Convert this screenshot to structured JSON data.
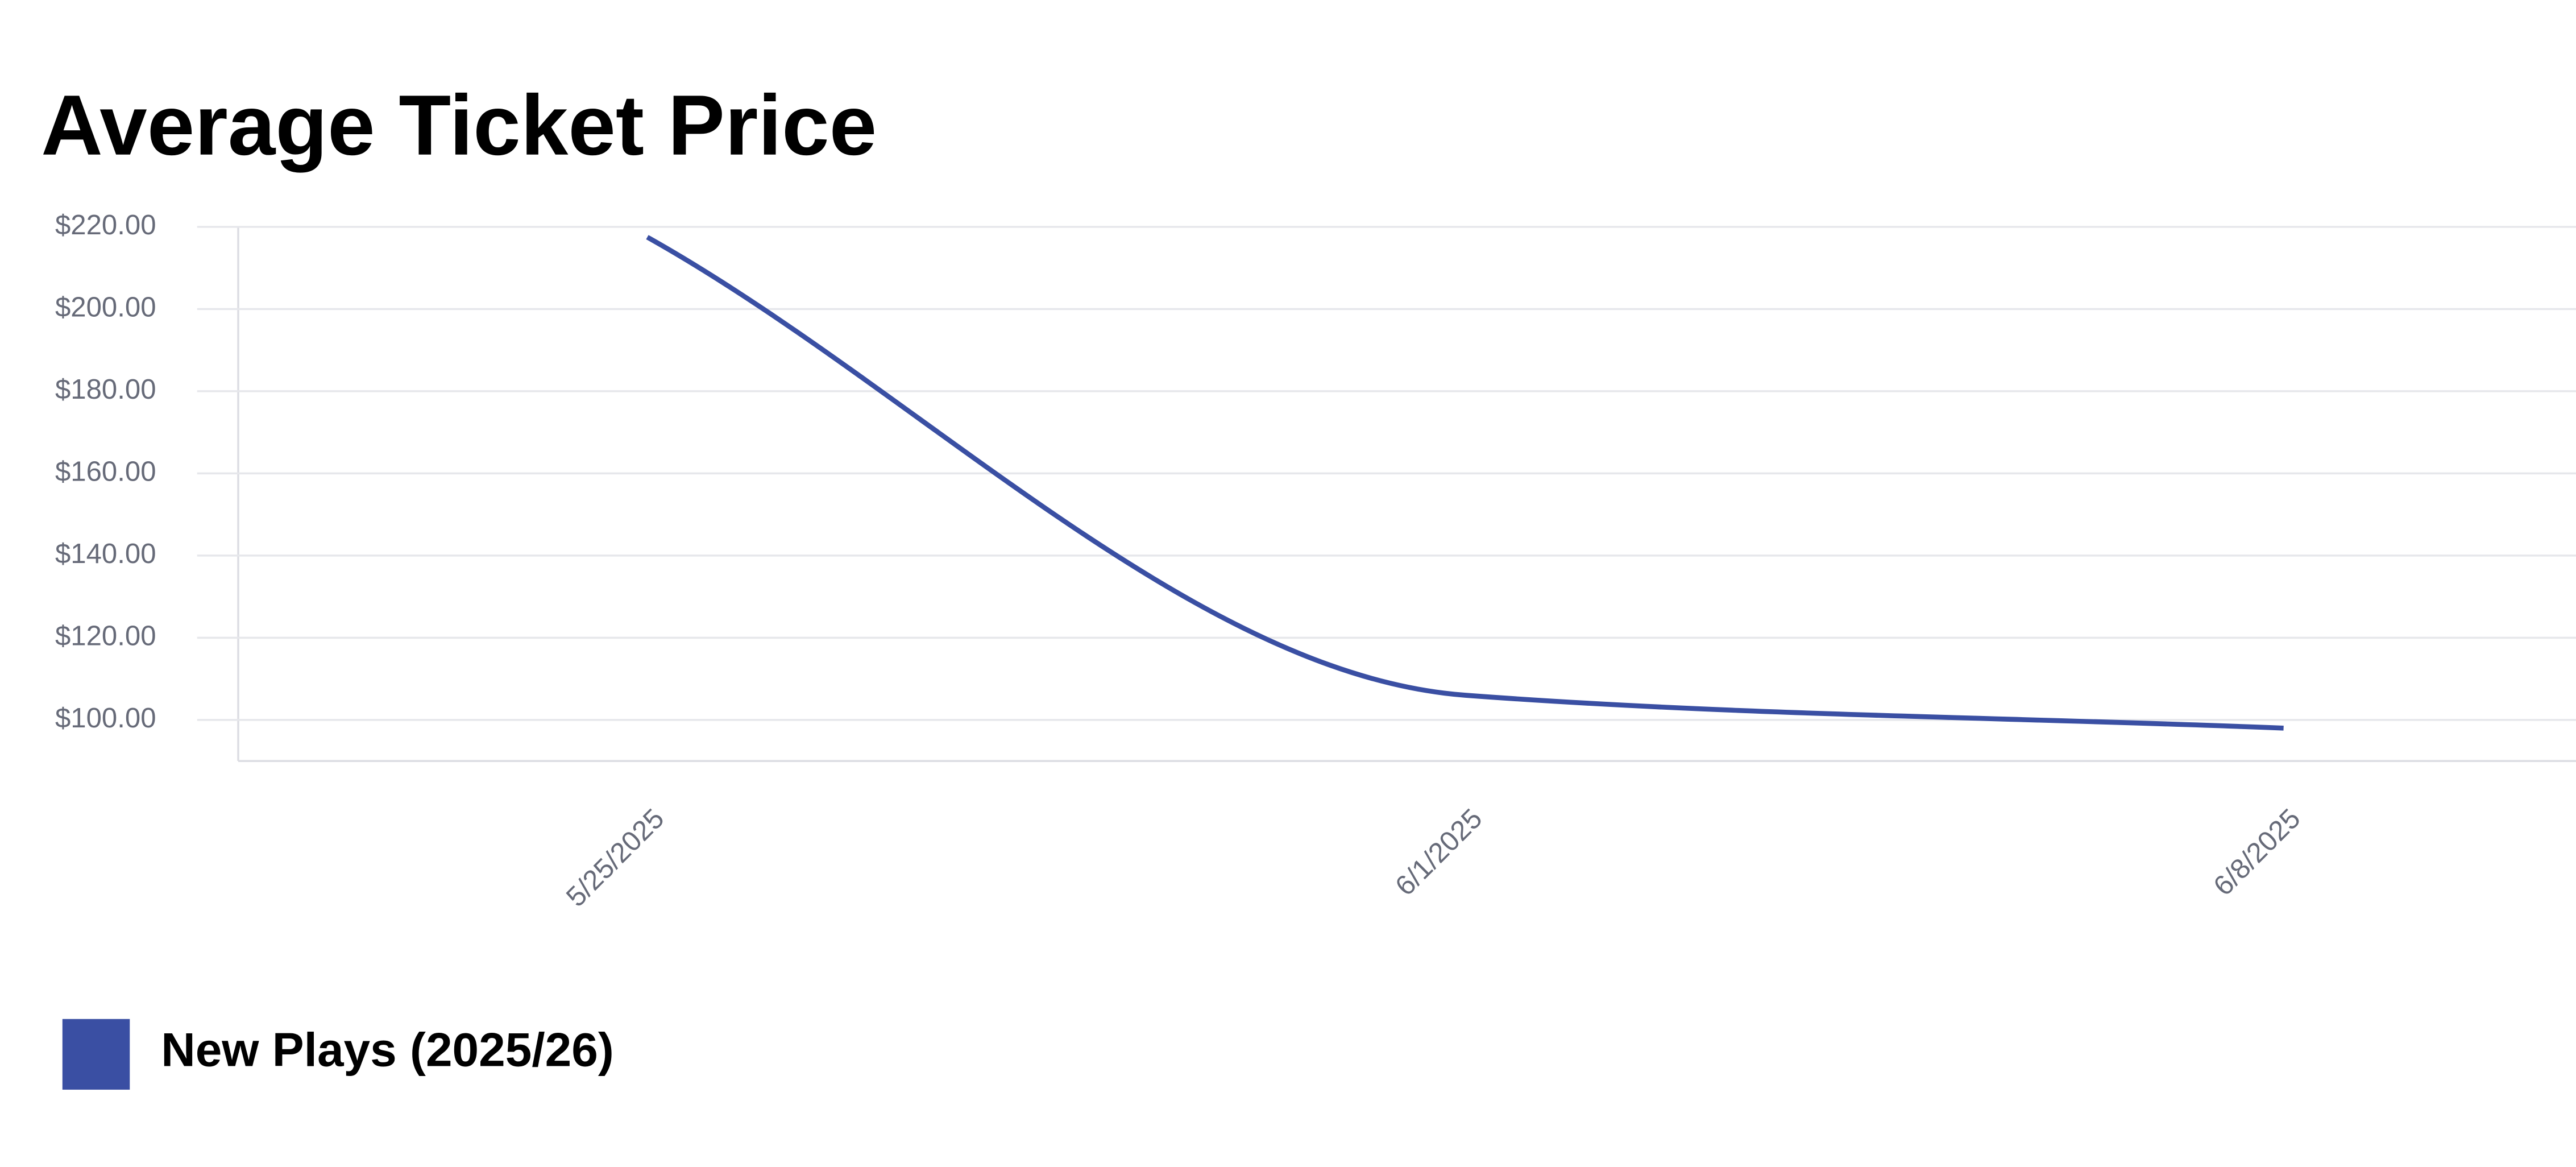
{
  "chart_data": {
    "type": "line",
    "title": "Average Ticket Price",
    "categories": [
      "5/25/2025",
      "6/1/2025",
      "6/8/2025"
    ],
    "series": [
      {
        "name": "New Plays (2025/26)",
        "color": "#3a4fa3",
        "values": [
          217.5,
          106,
          98
        ]
      }
    ],
    "ylim": [
      90,
      220
    ],
    "yticks": [
      {
        "value": 100,
        "label": "$100.00"
      },
      {
        "value": 120,
        "label": "$120.00"
      },
      {
        "value": 140,
        "label": "$140.00"
      },
      {
        "value": 160,
        "label": "$160.00"
      },
      {
        "value": 180,
        "label": "$180.00"
      },
      {
        "value": 200,
        "label": "$200.00"
      },
      {
        "value": 220,
        "label": "$220.00"
      }
    ],
    "grid": true,
    "legend": "bottom-left"
  }
}
